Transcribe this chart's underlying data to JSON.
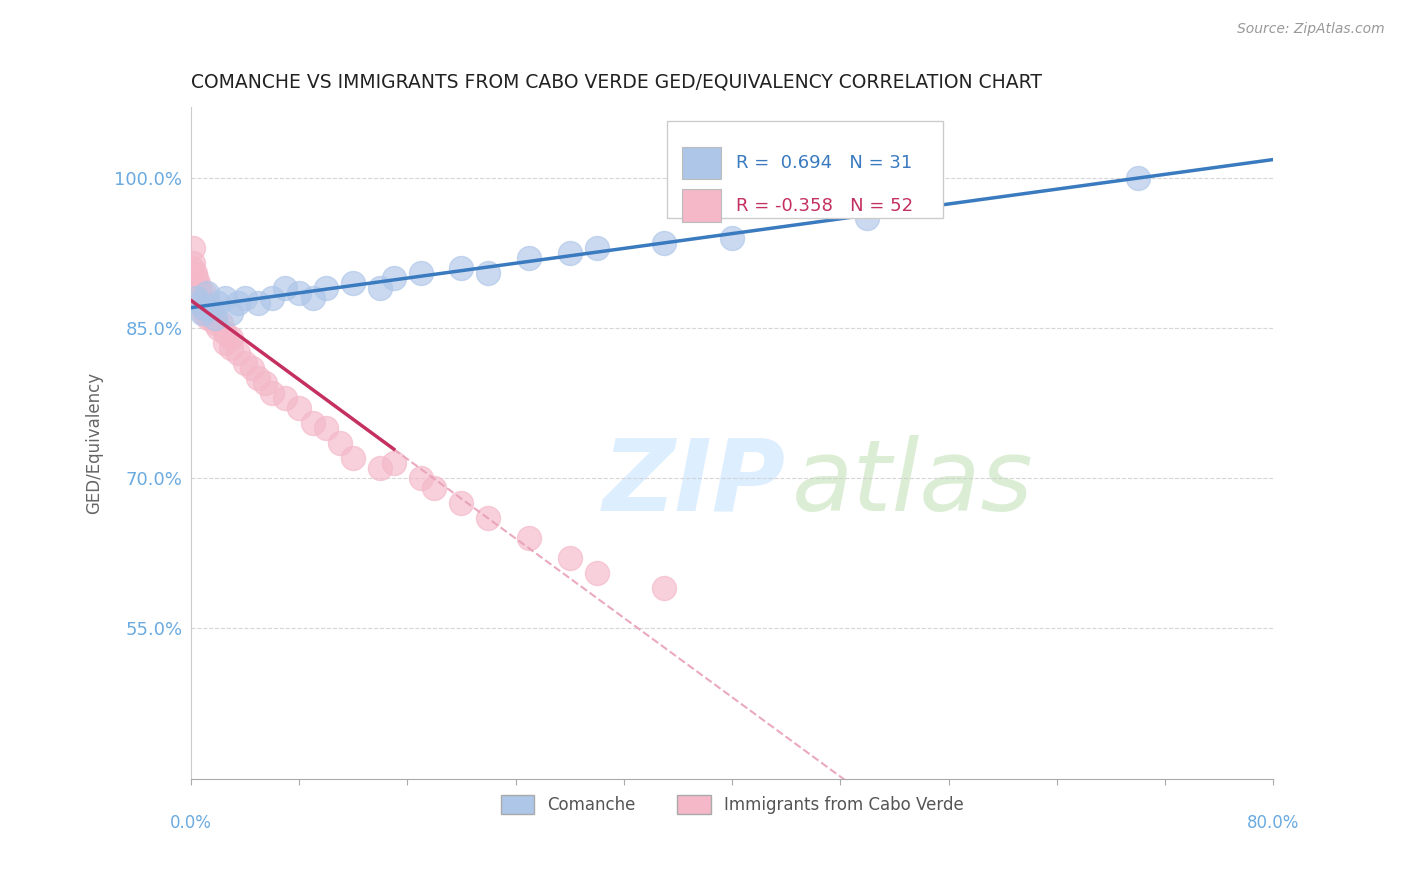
{
  "title": "COMANCHE VS IMMIGRANTS FROM CABO VERDE GED/EQUIVALENCY CORRELATION CHART",
  "source_text": "Source: ZipAtlas.com",
  "ylabel": "GED/Equivalency",
  "xlim": [
    0.0,
    80.0
  ],
  "ylim": [
    40.0,
    107.0
  ],
  "yticks": [
    55.0,
    70.0,
    85.0,
    100.0
  ],
  "grid_color": "#cccccc",
  "background_color": "#ffffff",
  "comanche_color": "#aec6e8",
  "cabo_verde_color": "#f4b8c8",
  "comanche_line_color": "#3a7abf",
  "cabo_verde_line_color": "#c43060",
  "cabo_verde_dash_color": "#e8a0b8",
  "R_comanche": 0.694,
  "N_comanche": 31,
  "R_cabo": -0.358,
  "N_cabo": 52,
  "legend_color_blue": "#3a7abf",
  "legend_color_pink": "#c43060",
  "axis_tick_color": "#6aaae0",
  "ylabel_color": "#666666",
  "title_color": "#222222",
  "source_color": "#999999",
  "bottom_legend_color": "#555555",
  "comanche_x": [
    0.4,
    0.6,
    0.8,
    1.0,
    1.2,
    1.5,
    1.8,
    2.0,
    2.5,
    3.0,
    3.5,
    4.0,
    5.0,
    6.0,
    7.0,
    8.0,
    9.0,
    10.0,
    12.0,
    14.0,
    15.0,
    17.0,
    20.0,
    22.0,
    25.0,
    28.0,
    30.0,
    35.0,
    40.0,
    50.0,
    70.0
  ],
  "comanche_y": [
    88.0,
    87.5,
    86.5,
    87.0,
    88.5,
    87.0,
    86.0,
    87.5,
    88.0,
    86.5,
    87.5,
    88.0,
    87.5,
    88.0,
    89.0,
    88.5,
    88.0,
    89.0,
    89.5,
    89.0,
    90.0,
    90.5,
    91.0,
    90.5,
    92.0,
    92.5,
    93.0,
    93.5,
    94.0,
    96.0,
    100.0
  ],
  "cabo_x": [
    0.1,
    0.15,
    0.2,
    0.2,
    0.25,
    0.3,
    0.35,
    0.4,
    0.4,
    0.5,
    0.5,
    0.6,
    0.7,
    0.8,
    0.8,
    0.9,
    1.0,
    1.0,
    1.1,
    1.2,
    1.3,
    1.5,
    1.5,
    1.8,
    2.0,
    2.2,
    2.5,
    2.5,
    3.0,
    3.0,
    3.5,
    4.0,
    4.5,
    5.0,
    5.5,
    6.0,
    7.0,
    8.0,
    9.0,
    10.0,
    11.0,
    12.0,
    14.0,
    15.0,
    17.0,
    18.0,
    20.0,
    22.0,
    25.0,
    28.0,
    30.0,
    35.0
  ],
  "cabo_y": [
    91.0,
    93.0,
    91.5,
    90.0,
    89.5,
    90.5,
    89.0,
    90.0,
    88.5,
    89.5,
    88.0,
    89.0,
    88.5,
    87.5,
    88.0,
    87.0,
    88.5,
    86.5,
    87.5,
    86.5,
    86.0,
    87.0,
    86.0,
    85.5,
    85.0,
    85.5,
    84.5,
    83.5,
    84.0,
    83.0,
    82.5,
    81.5,
    81.0,
    80.0,
    79.5,
    78.5,
    78.0,
    77.0,
    75.5,
    75.0,
    73.5,
    72.0,
    71.0,
    71.5,
    70.0,
    69.0,
    67.5,
    66.0,
    64.0,
    62.0,
    60.5,
    59.0
  ],
  "cabo_solid_end_x": 15.0,
  "legend_bottom_labels": [
    "Comanche",
    "Immigrants from Cabo Verde"
  ],
  "xtick_positions": [
    0.0,
    8.0,
    16.0,
    24.0,
    32.0,
    40.0,
    48.0,
    56.0,
    64.0,
    72.0,
    80.0
  ],
  "watermark_zip": "ZIP",
  "watermark_atlas": "atlas"
}
